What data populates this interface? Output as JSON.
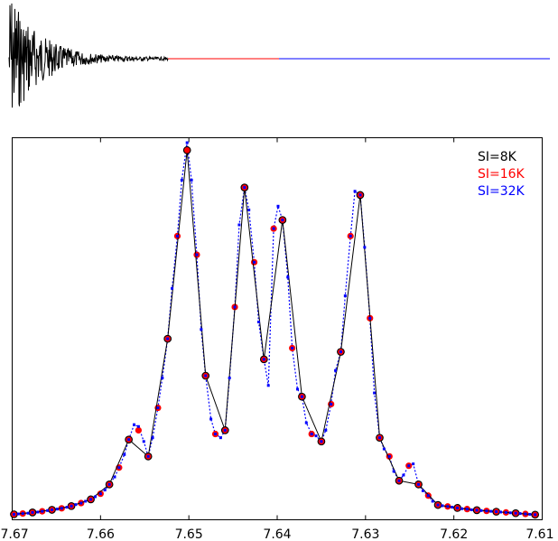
{
  "chart_data": [
    {
      "type": "line",
      "description_role": "fid_time_domain",
      "segments": [
        {
          "name": "",
          "color": "#000000"
        },
        {
          "name": "",
          "color": "#ff0000"
        },
        {
          "name": "",
          "color": "#0000ff"
        }
      ]
    },
    {
      "type": "line",
      "title": "",
      "xlabel": "",
      "ylabel": "",
      "xlim": [
        7.67,
        7.61
      ],
      "x_ticks": [
        "7.67",
        "7.66",
        "7.65",
        "7.64",
        "7.63",
        "7.62",
        "7.61"
      ],
      "grid": false,
      "legend_placement": "top-right",
      "legend": [
        {
          "label": "SI=8K",
          "color": "#000000"
        },
        {
          "label": "SI=16K",
          "color": "#ff0000"
        },
        {
          "label": "SI=32K",
          "color": "#0000ff"
        }
      ],
      "series": [
        {
          "name": "SI=8K",
          "color": "#000000",
          "style": "solid line with circle markers",
          "x": [
            7.6698,
            7.6677,
            7.6655,
            7.6633,
            7.6611,
            7.659,
            7.6568,
            7.6546,
            7.6524,
            7.6502,
            7.6481,
            7.6459,
            7.6437,
            7.6415,
            7.6394,
            7.6372,
            7.635,
            7.6328,
            7.6306,
            7.6284,
            7.6262,
            7.624,
            7.6218,
            7.6196,
            7.6174,
            7.6152,
            7.613,
            7.6108
          ],
          "y": [
            0.005,
            0.01,
            0.017,
            0.027,
            0.045,
            0.085,
            0.205,
            0.16,
            0.475,
            0.98,
            0.376,
            0.23,
            0.88,
            0.42,
            0.793,
            0.32,
            0.2,
            0.44,
            0.86,
            0.21,
            0.095,
            0.085,
            0.03,
            0.022,
            0.016,
            0.012,
            0.008,
            0.004
          ]
        },
        {
          "name": "SI=16K",
          "color": "#ff0000",
          "style": "circle markers",
          "x": [
            7.6698,
            7.6688,
            7.6677,
            7.6666,
            7.6655,
            7.6644,
            7.6633,
            7.6622,
            7.6611,
            7.66,
            7.659,
            7.6579,
            7.6568,
            7.6557,
            7.6546,
            7.6535,
            7.6524,
            7.6513,
            7.6502,
            7.6491,
            7.6481,
            7.647,
            7.6459,
            7.6448,
            7.6437,
            7.6426,
            7.6415,
            7.6404,
            7.6394,
            7.6383,
            7.6372,
            7.6361,
            7.635,
            7.6339,
            7.6328,
            7.6317,
            7.6306,
            7.6295,
            7.6284,
            7.6273,
            7.6262,
            7.6251,
            7.624,
            7.6229,
            7.6218,
            7.6207,
            7.6196,
            7.6185,
            7.6174,
            7.6163,
            7.6152,
            7.6141,
            7.613,
            7.6119,
            7.6108
          ],
          "y": [
            0.005,
            0.007,
            0.01,
            0.013,
            0.017,
            0.021,
            0.027,
            0.035,
            0.045,
            0.06,
            0.085,
            0.13,
            0.205,
            0.23,
            0.16,
            0.29,
            0.475,
            0.75,
            0.98,
            0.7,
            0.376,
            0.22,
            0.23,
            0.56,
            0.88,
            0.68,
            0.42,
            0.77,
            0.793,
            0.45,
            0.32,
            0.22,
            0.2,
            0.3,
            0.44,
            0.75,
            0.86,
            0.53,
            0.21,
            0.16,
            0.095,
            0.135,
            0.085,
            0.055,
            0.03,
            0.026,
            0.022,
            0.019,
            0.016,
            0.014,
            0.012,
            0.01,
            0.008,
            0.006,
            0.004
          ]
        },
        {
          "name": "SI=32K",
          "color": "#0000ff",
          "style": "dotted line with small square markers",
          "x": [
            7.6698,
            7.6693,
            7.6688,
            7.6682,
            7.6677,
            7.6671,
            7.6666,
            7.666,
            7.6655,
            7.6649,
            7.6644,
            7.6638,
            7.6633,
            7.6628,
            7.6622,
            7.6617,
            7.6611,
            7.6606,
            7.66,
            7.6595,
            7.659,
            7.6584,
            7.6579,
            7.6573,
            7.6568,
            7.6562,
            7.6557,
            7.6551,
            7.6546,
            7.6541,
            7.6535,
            7.653,
            7.6524,
            7.6519,
            7.6513,
            7.6508,
            7.6502,
            7.6497,
            7.6491,
            7.6486,
            7.6481,
            7.6475,
            7.647,
            7.6464,
            7.6459,
            7.6454,
            7.6448,
            7.6443,
            7.6437,
            7.6432,
            7.6426,
            7.6421,
            7.6415,
            7.641,
            7.6404,
            7.6399,
            7.6394,
            7.6388,
            7.6383,
            7.6377,
            7.6372,
            7.6367,
            7.6361,
            7.6356,
            7.635,
            7.6345,
            7.6339,
            7.6334,
            7.6328,
            7.6323,
            7.6317,
            7.6312,
            7.6306,
            7.6301,
            7.6295,
            7.629,
            7.6284,
            7.6279,
            7.6273,
            7.6268,
            7.6262,
            7.6257,
            7.6251,
            7.6246,
            7.624,
            7.6235,
            7.6229,
            7.6224,
            7.6218,
            7.6213,
            7.6207,
            7.6202,
            7.6196,
            7.6191,
            7.6185,
            7.618,
            7.6174,
            7.6169,
            7.6163,
            7.6158,
            7.6152,
            7.6147,
            7.6141,
            7.6136,
            7.613,
            7.6125,
            7.6119,
            7.6114,
            7.6108
          ],
          "y": [
            0.005,
            0.006,
            0.007,
            0.008,
            0.01,
            0.011,
            0.013,
            0.015,
            0.017,
            0.019,
            0.021,
            0.024,
            0.027,
            0.031,
            0.035,
            0.04,
            0.045,
            0.052,
            0.06,
            0.07,
            0.085,
            0.105,
            0.13,
            0.165,
            0.205,
            0.245,
            0.24,
            0.2,
            0.16,
            0.21,
            0.29,
            0.37,
            0.475,
            0.61,
            0.75,
            0.9,
            1.0,
            0.9,
            0.7,
            0.5,
            0.376,
            0.26,
            0.22,
            0.21,
            0.23,
            0.37,
            0.56,
            0.78,
            0.88,
            0.82,
            0.68,
            0.52,
            0.42,
            0.35,
            0.77,
            0.83,
            0.793,
            0.64,
            0.45,
            0.34,
            0.32,
            0.25,
            0.22,
            0.215,
            0.2,
            0.23,
            0.3,
            0.39,
            0.44,
            0.59,
            0.75,
            0.87,
            0.86,
            0.72,
            0.53,
            0.33,
            0.21,
            0.18,
            0.16,
            0.12,
            0.095,
            0.11,
            0.135,
            0.14,
            0.085,
            0.068,
            0.055,
            0.04,
            0.03,
            0.028,
            0.026,
            0.024,
            0.022,
            0.02,
            0.019,
            0.017,
            0.016,
            0.015,
            0.014,
            0.013,
            0.012,
            0.011,
            0.01,
            0.009,
            0.008,
            0.007,
            0.006,
            0.005,
            0.004
          ]
        }
      ]
    }
  ]
}
